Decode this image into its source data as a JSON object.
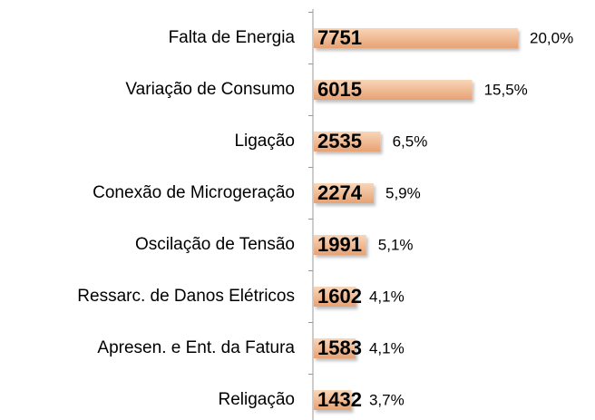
{
  "chart_data": {
    "type": "bar",
    "orientation": "horizontal",
    "categories": [
      "Falta de Energia",
      "Variação de Consumo",
      "Ligação",
      "Conexão de Microgeração",
      "Oscilação de Tensão",
      "Ressarc. de Danos Elétricos",
      "Apresen. e Ent. da Fatura",
      "Religação"
    ],
    "values": [
      7751,
      6015,
      2535,
      2274,
      1991,
      1602,
      1583,
      1432
    ],
    "percentages": [
      20.0,
      15.5,
      6.5,
      5.9,
      5.1,
      4.1,
      4.1,
      3.7
    ],
    "percentage_labels": [
      "20,0%",
      "15,5%",
      "6,5%",
      "5,9%",
      "5,1%",
      "4,1%",
      "4,1%",
      "3,7%"
    ],
    "color": "#f0b68a"
  }
}
